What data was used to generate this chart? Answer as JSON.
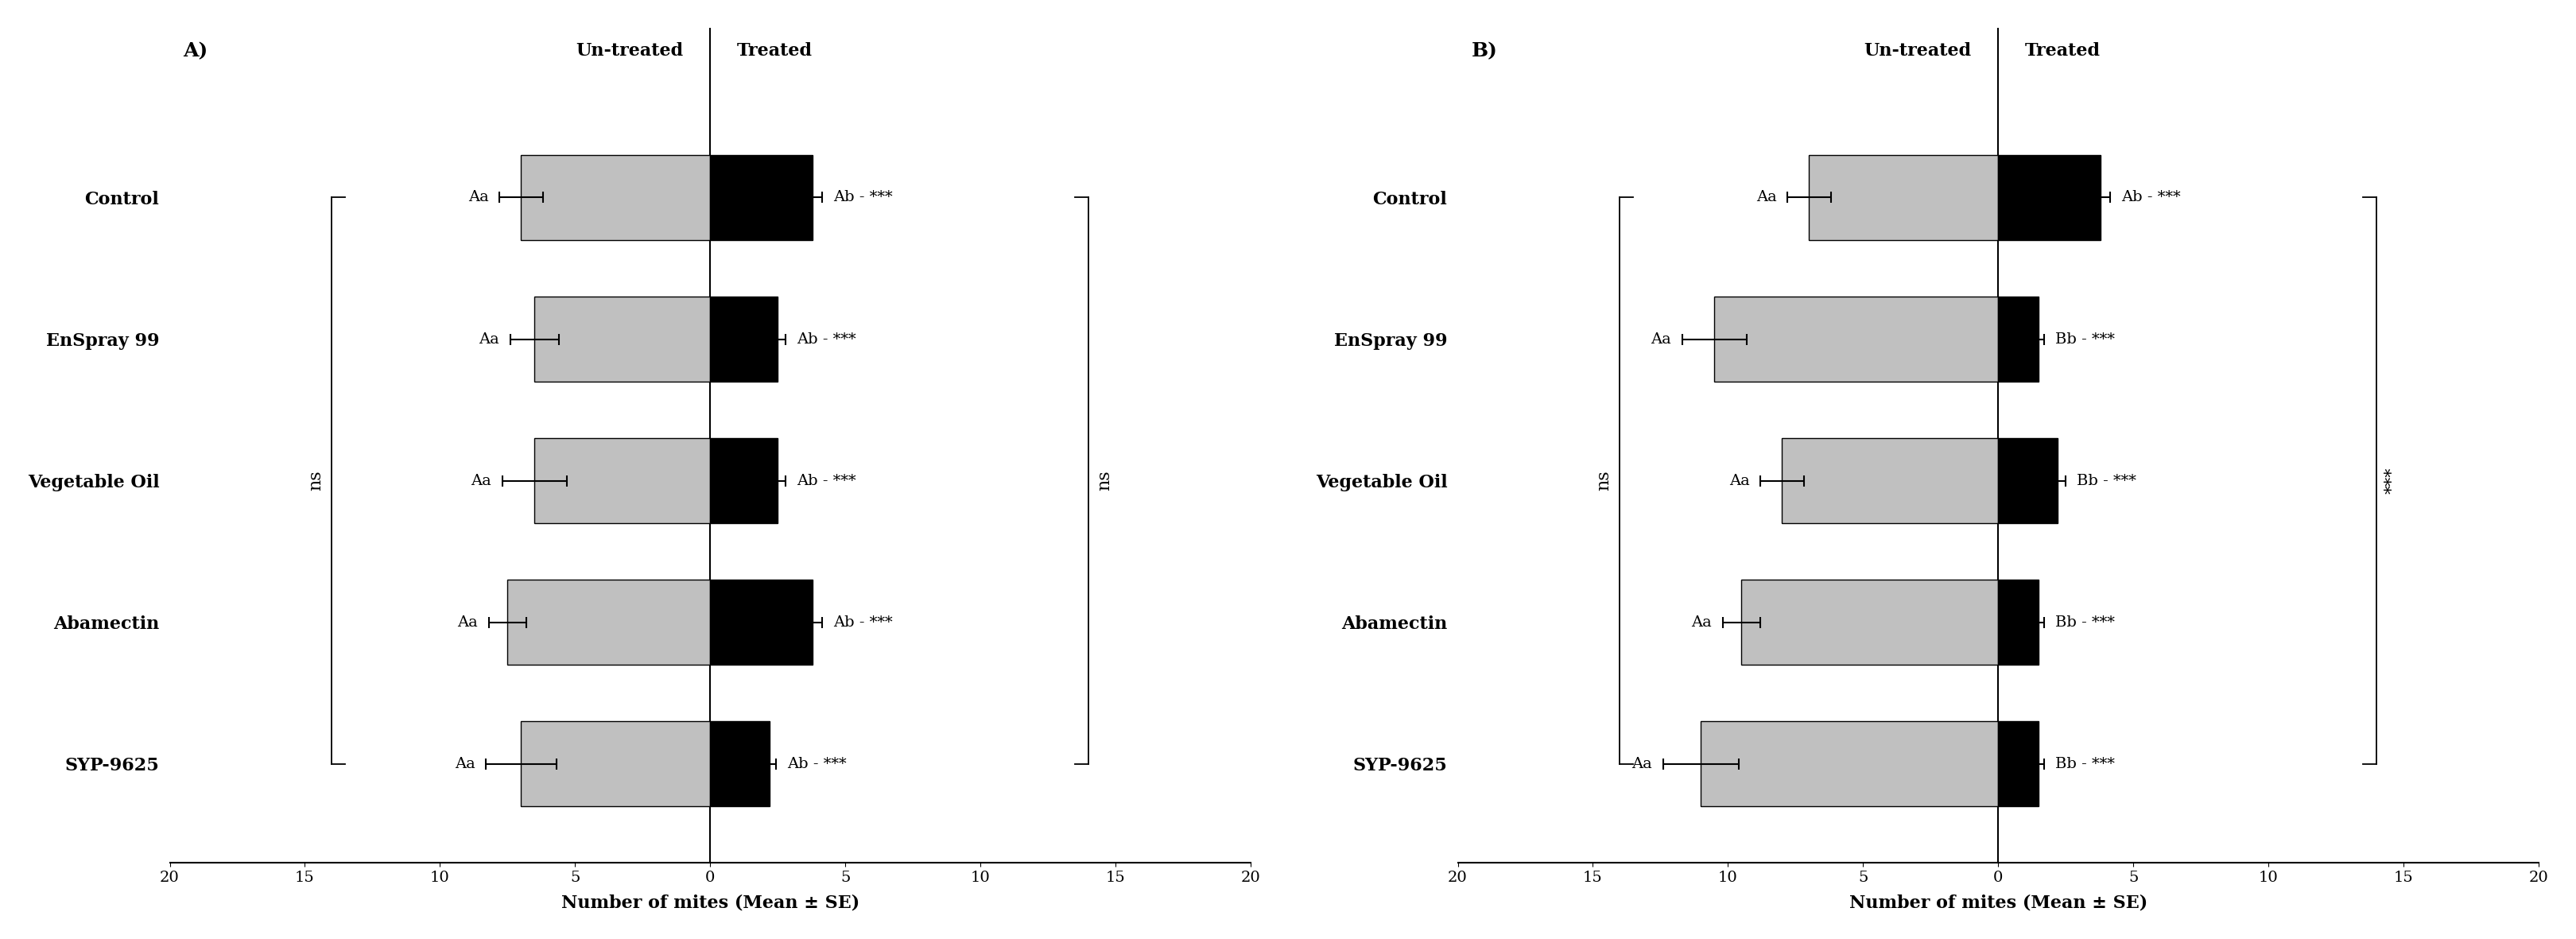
{
  "categories": [
    "Control",
    "EnSpray 99",
    "Vegetable Oil",
    "Abamectin",
    "SYP-9625"
  ],
  "panel_A": {
    "untreated_means": [
      7.0,
      6.5,
      6.5,
      7.5,
      7.0
    ],
    "untreated_se": [
      0.8,
      0.9,
      1.2,
      0.7,
      1.3
    ],
    "treated_means": [
      3.8,
      2.5,
      2.5,
      3.8,
      2.2
    ],
    "treated_se": [
      0.35,
      0.3,
      0.3,
      0.35,
      0.25
    ],
    "right_labels": [
      "Ab - ***",
      "Ab - ***",
      "Ab - ***",
      "Ab - ***",
      "Ab - ***"
    ],
    "right_bracket_label": "ns",
    "left_bracket_label": "ns",
    "panel_title": "A)"
  },
  "panel_B": {
    "untreated_means": [
      7.0,
      10.5,
      8.0,
      9.5,
      11.0
    ],
    "untreated_se": [
      0.8,
      1.2,
      0.8,
      0.7,
      1.4
    ],
    "treated_means": [
      3.8,
      1.5,
      2.2,
      1.5,
      1.5
    ],
    "treated_se": [
      0.35,
      0.2,
      0.3,
      0.2,
      0.2
    ],
    "right_labels": [
      "Ab - ***",
      "Bb - ***",
      "Bb - ***",
      "Bb - ***",
      "Bb - ***"
    ],
    "right_bracket_label": "***",
    "left_bracket_label": "ns",
    "panel_title": "B)"
  },
  "xlim": [
    -20,
    20
  ],
  "xticks": [
    -20,
    -15,
    -10,
    -5,
    0,
    5,
    10,
    15,
    20
  ],
  "xticklabels": [
    "20",
    "15",
    "10",
    "5",
    "0",
    "5",
    "10",
    "15",
    "20"
  ],
  "xlabel": "Number of mites (Mean ± SE)",
  "header_untreated": "Un-treated",
  "header_treated": "Treated",
  "bar_height": 0.6,
  "gray_color": "#c0c0c0",
  "black_color": "#000000",
  "background_color": "#ffffff",
  "fontsize_cat_labels": 16,
  "fontsize_title": 18,
  "fontsize_xlabel": 16,
  "fontsize_ticks": 14,
  "fontsize_header": 16,
  "fontsize_annot": 14,
  "fontsize_bracket": 16
}
